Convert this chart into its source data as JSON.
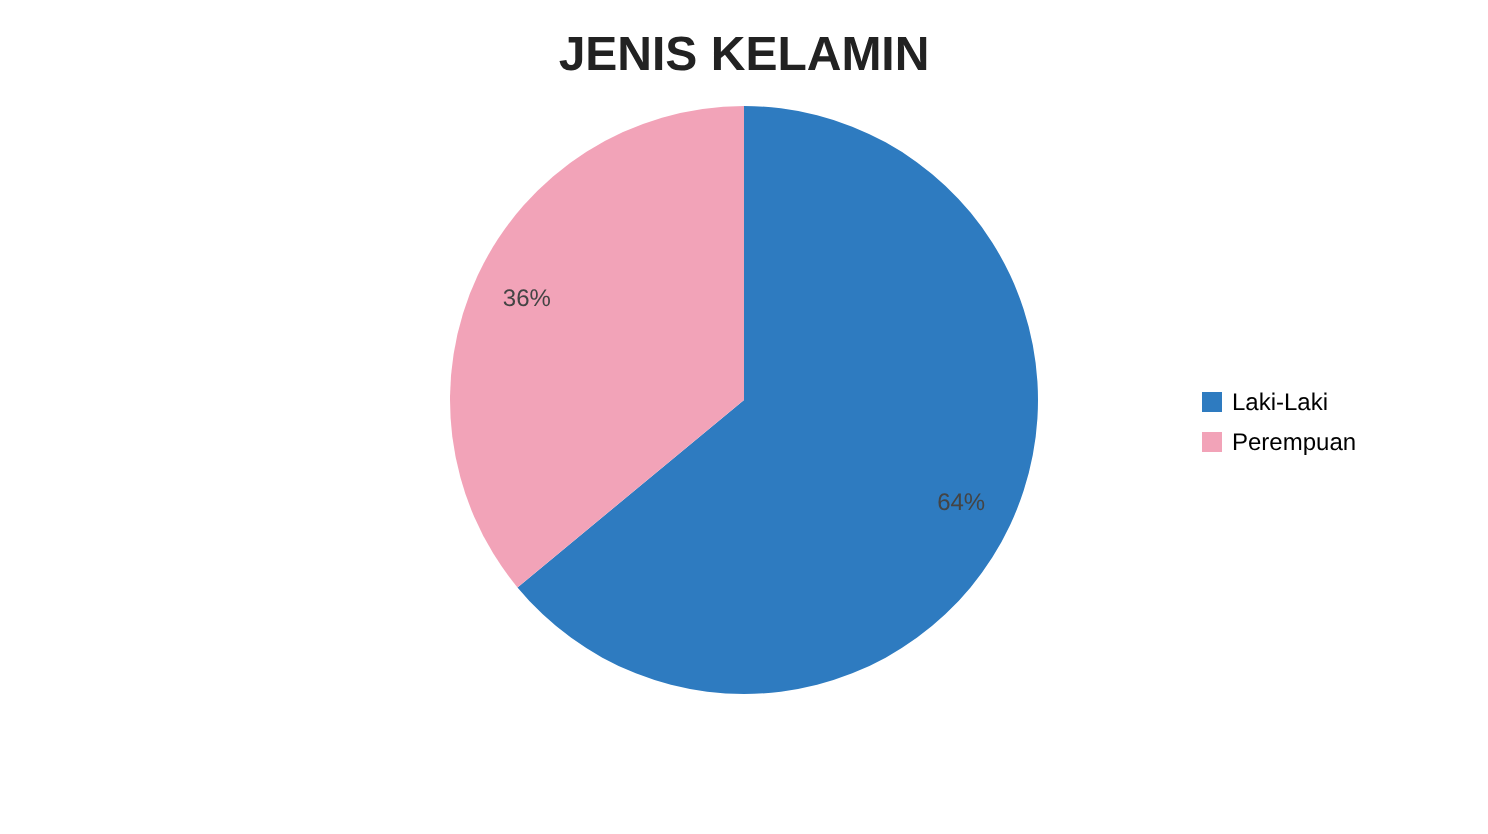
{
  "chart_data": {
    "type": "pie",
    "title": "JENIS KELAMIN",
    "categories": [
      "Laki-Laki",
      "Perempuan"
    ],
    "values": [
      64,
      36
    ],
    "colors": [
      "#2e7bc0",
      "#f2a3b8"
    ],
    "value_labels": [
      "64%",
      "36%"
    ],
    "legend": "right"
  }
}
